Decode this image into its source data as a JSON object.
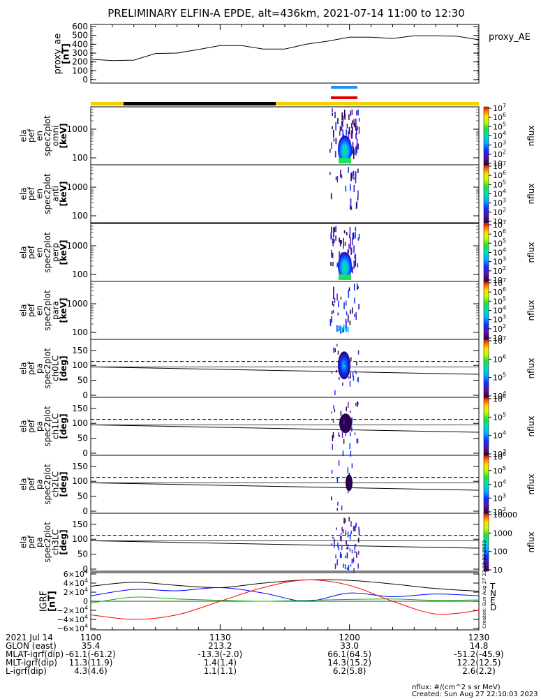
{
  "title": "PRELIMINARY ELFIN-A EPDE, alt=436km, 2021-07-14 11:00 to 12:30",
  "chart_data": [
    {
      "type": "line",
      "panel": "proxy_ae",
      "ylabel": "proxy_ae\n[nT]",
      "legend": "proxy_AE",
      "ylim": [
        0,
        600
      ],
      "yticks": [
        "0",
        "100",
        "200",
        "300",
        "400",
        "500",
        "600"
      ],
      "x_minutes": [
        0,
        5,
        10,
        15,
        20,
        25,
        30,
        35,
        40,
        45,
        50,
        55,
        60,
        65,
        70,
        75,
        80,
        85,
        90
      ],
      "values": [
        230,
        215,
        220,
        295,
        300,
        340,
        385,
        385,
        345,
        345,
        400,
        435,
        480,
        480,
        465,
        495,
        495,
        490,
        450
      ],
      "color": "#000000"
    },
    {
      "type": "heatmap",
      "panel": "omni",
      "ylabel": "ela\npef\nen\nspec2plot\nomni\n[keV]",
      "yscale": "log",
      "yticks": [
        "100",
        "1000"
      ],
      "colorbar_ticks": [
        "10",
        "10^2",
        "10^3",
        "10^4",
        "10^5",
        "10^6",
        "10^7"
      ],
      "colorbar_label": "nflux"
    },
    {
      "type": "heatmap",
      "panel": "anti",
      "ylabel": "ela\npef\nen\nspec2plot\nanti\n[keV]",
      "yscale": "log",
      "yticks": [
        "100",
        "1000"
      ],
      "colorbar_ticks": [
        "10",
        "10^2",
        "10^3",
        "10^4",
        "10^5",
        "10^6",
        "10^7"
      ],
      "colorbar_label": "nflux"
    },
    {
      "type": "heatmap",
      "panel": "perp",
      "ylabel": "ela\npef\nen\nspec2plot\nperp\n[keV]",
      "yscale": "log",
      "yticks": [
        "100",
        "1000"
      ],
      "colorbar_ticks": [
        "10",
        "10^2",
        "10^3",
        "10^4",
        "10^5",
        "10^6",
        "10^7"
      ],
      "colorbar_label": "nflux"
    },
    {
      "type": "heatmap",
      "panel": "para",
      "ylabel": "ela\npef\nen\nspec2plot\npara\n[keV]",
      "yscale": "log",
      "yticks": [
        "100",
        "1000"
      ],
      "colorbar_ticks": [
        "10",
        "10^2",
        "10^3",
        "10^4",
        "10^5",
        "10^6",
        "10^7"
      ],
      "colorbar_label": "nflux"
    },
    {
      "type": "heatmap",
      "panel": "ch0LC",
      "ylabel": "ela\npef\npa\nspec2plot\nch0LC\n[deg]",
      "ylim": [
        0,
        180
      ],
      "yticks": [
        "0",
        "50",
        "100",
        "150"
      ],
      "colorbar_ticks": [
        "10^4",
        "10^5",
        "10^6",
        "10^7"
      ],
      "colorbar_label": "nflux"
    },
    {
      "type": "heatmap",
      "panel": "ch1LC",
      "ylabel": "ela\npef\npa\nspec2plot\nch1LC\n[deg]",
      "ylim": [
        0,
        180
      ],
      "yticks": [
        "0",
        "50",
        "100",
        "150"
      ],
      "colorbar_ticks": [
        "10^3",
        "10^4",
        "10^5",
        "10^6"
      ],
      "colorbar_label": "nflux"
    },
    {
      "type": "heatmap",
      "panel": "ch2LC",
      "ylabel": "ela\npef\npa\nspec2plot\nch2LC\n[deg]",
      "ylim": [
        0,
        180
      ],
      "yticks": [
        "0",
        "50",
        "100",
        "150"
      ],
      "colorbar_ticks": [
        "10^2",
        "10^3",
        "10^4",
        "10^5",
        "10^6"
      ],
      "colorbar_label": "nflux"
    },
    {
      "type": "heatmap",
      "panel": "ch3LC",
      "ylabel": "ela\npef\npa\nspec2plot\nch3LC\n[deg]",
      "ylim": [
        0,
        180
      ],
      "yticks": [
        "0",
        "50",
        "100",
        "150"
      ],
      "colorbar_ticks": [
        "10",
        "100",
        "1000",
        "10000"
      ],
      "colorbar_label": "nflux"
    },
    {
      "type": "line",
      "panel": "IGRF",
      "ylabel": "IGRF\n[nT]",
      "ylim": [
        -60000,
        60000
      ],
      "yticks": [
        "−6×10^4",
        "−4×10^4",
        "−2×10^4",
        "0",
        "2×10^4",
        "4×10^4",
        "6×10^4"
      ],
      "x_minutes": [
        0,
        10,
        20,
        30,
        40,
        50,
        60,
        70,
        80,
        90
      ],
      "series": [
        {
          "name": "T",
          "color": "#000000",
          "values": [
            33000,
            42000,
            35000,
            30000,
            40000,
            47000,
            46000,
            38000,
            28000,
            22000
          ]
        },
        {
          "name": "N",
          "color": "#0000ff",
          "values": [
            12000,
            26000,
            23000,
            30000,
            18000,
            0,
            18000,
            10000,
            16000,
            12000
          ]
        },
        {
          "name": "E",
          "color": "#00c000",
          "values": [
            -4000,
            9000,
            5000,
            2000,
            0,
            2000,
            4000,
            5000,
            2000,
            3000
          ]
        },
        {
          "name": "D",
          "color": "#ff0000",
          "values": [
            -30000,
            -40000,
            -30000,
            0,
            30000,
            47000,
            35000,
            0,
            -28000,
            -20000
          ]
        }
      ]
    }
  ],
  "x_axis": {
    "rows": [
      {
        "label": "2021 Jul 14",
        "values": [
          "1100",
          "1130",
          "1200",
          "1230"
        ]
      },
      {
        "label": "GLON (east)",
        "values": [
          "35.4",
          "213.2",
          "33.0",
          "14.8"
        ]
      },
      {
        "label": "MLAT-igrf(dip)",
        "values": [
          "-61.1(-61.2)",
          "-13.3(-2.0)",
          "66.1(64.5)",
          "-51.2(-45.9)"
        ]
      },
      {
        "label": "MLT-igrf(dip)",
        "values": [
          "11.3(11.9)",
          "1.4(1.4)",
          "14.3(15.2)",
          "12.2(12.5)"
        ]
      },
      {
        "label": "L-igrf(dip)",
        "values": [
          "4.3(4.6)",
          "1.1(1.1)",
          "6.2(5.8)",
          "2.6(2.2)"
        ]
      }
    ]
  },
  "footer": {
    "units": "nflux: #/(cm^2 s sr MeV)",
    "created": "Created: Sun Aug 27 22:10:03 2023"
  },
  "colors": {
    "sunlit_bar": "#f5d000",
    "eclipse_bar": "#000000",
    "science_zone_blue": "#1e90ff",
    "science_zone_red": "#e00000"
  }
}
